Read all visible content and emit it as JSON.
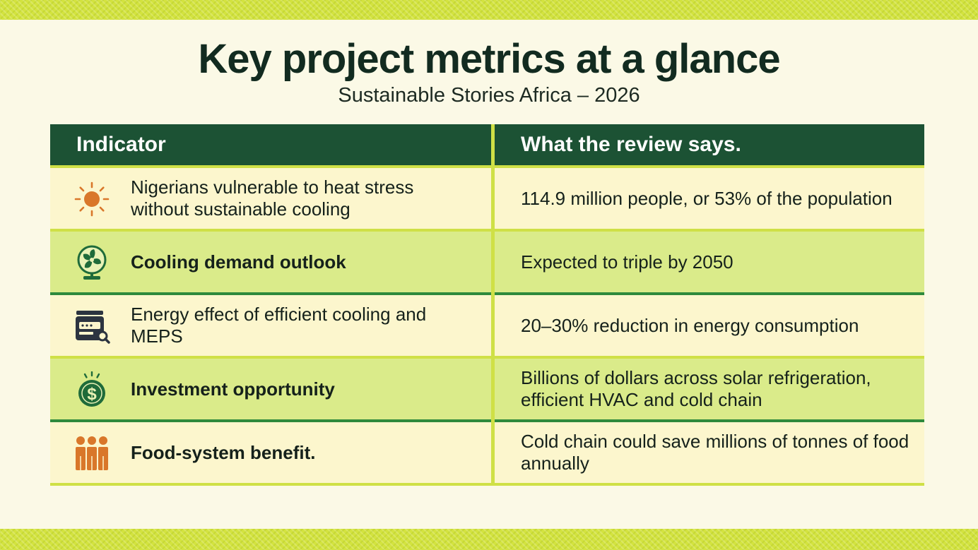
{
  "header": {
    "title": "Key project metrics at a glance",
    "subtitle": "Sustainable Stories Africa – 2026"
  },
  "table": {
    "columns": [
      "Indicator",
      "What the review says."
    ],
    "rows": [
      {
        "icon": "sun-icon",
        "indicator": "Nigerians vulnerable to heat stress without sustainable cooling",
        "review": "114.9 million people, or 53% of the population"
      },
      {
        "icon": "fan-icon",
        "indicator": "Cooling demand outlook",
        "review": "Expected to triple by 2050"
      },
      {
        "icon": "appliance-icon",
        "indicator": "Energy effect of efficient cooling and MEPS",
        "review": "20–30% reduction in energy consumption"
      },
      {
        "icon": "dollar-coin-icon",
        "indicator": "Investment opportunity",
        "review": "Billions of dollars across solar refrigeration, efficient HVAC and cold chain"
      },
      {
        "icon": "people-icon",
        "indicator": "Food-system benefit.",
        "review": "Cold chain could save millions of tonnes of food annually"
      }
    ]
  },
  "colors": {
    "header_bg": "#1c5234",
    "accent_lime": "#cfe046",
    "row_light": "#fcf6cd",
    "row_green": "#daeb8a",
    "icon_orange": "#d9772a",
    "icon_green": "#1f6b3a",
    "icon_dark": "#2c3440"
  }
}
